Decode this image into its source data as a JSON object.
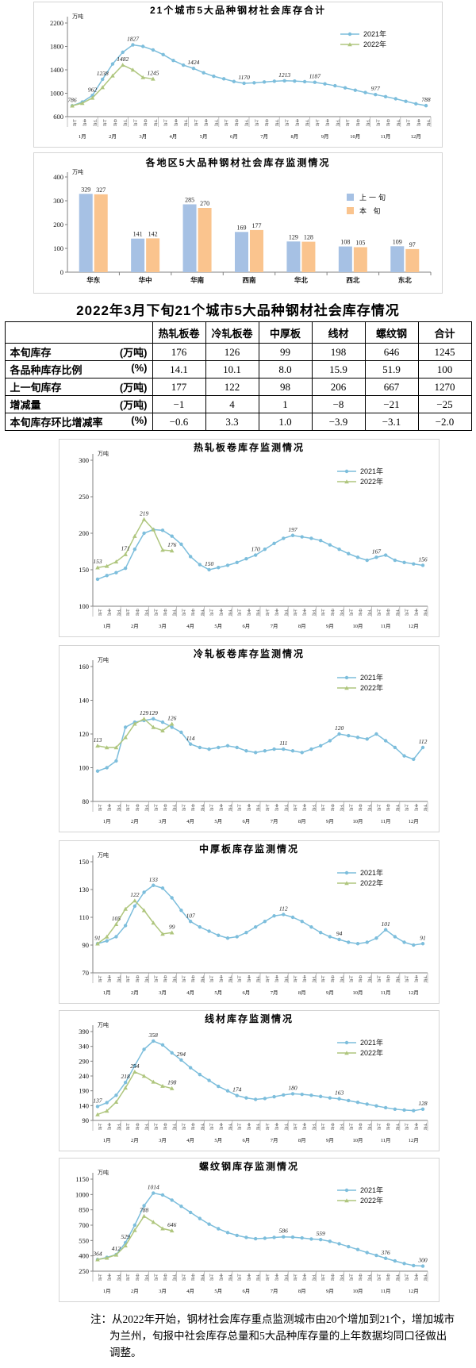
{
  "page": {
    "title": "2022年3月下旬21个城市5大品种钢材社会库存情况"
  },
  "table": {
    "col_headers": [
      "",
      "热轧板卷",
      "冷轧板卷",
      "中厚板",
      "线材",
      "螺纹钢",
      "合计"
    ],
    "rows": [
      {
        "label": "本旬库存",
        "unit": "(万吨)",
        "values": [
          "176",
          "126",
          "99",
          "198",
          "646",
          "1245"
        ]
      },
      {
        "label": "各品种库存比例",
        "unit": "(%)",
        "values": [
          "14.1",
          "10.1",
          "8.0",
          "15.9",
          "51.9",
          "100"
        ]
      },
      {
        "label": "上一旬库存",
        "unit": "(万吨)",
        "values": [
          "177",
          "122",
          "98",
          "206",
          "667",
          "1270"
        ]
      },
      {
        "label": "增减量",
        "unit": "(万吨)",
        "values": [
          "−1",
          "4",
          "1",
          "−8",
          "−21",
          "−25"
        ]
      },
      {
        "label": "本旬库存环比增减率",
        "unit": "(%)",
        "values": [
          "−0.6",
          "3.3",
          "1.0",
          "−3.9",
          "−3.1",
          "−2.0"
        ]
      }
    ]
  },
  "note": "注：从2022年开始，钢材社会库存重点监测城市由20个增加到21个，增加城市为兰州，旬报中社会库存总量和5大品种库存量的上年数据均同口径做出调整。",
  "chart_data": [
    {
      "type": "line",
      "title": "21个城市5大品种钢材社会库存合计",
      "unit": "万吨",
      "ylim": [
        600,
        2200
      ],
      "ytick": 400,
      "grid": false,
      "legend_position": "top-right",
      "x_months": [
        "1月",
        "2月",
        "3月",
        "4月",
        "5月",
        "6月",
        "7月",
        "8月",
        "9月",
        "10月",
        "11月",
        "12月"
      ],
      "x_periods": [
        "上旬",
        "中旬",
        "下旬"
      ],
      "series": [
        {
          "name": "2021年",
          "color": "#7DBEDC",
          "marker": "circle",
          "values": [
            786,
            850,
            962,
            1238,
            1500,
            1700,
            1827,
            1800,
            1740,
            1660,
            1560,
            1480,
            1424,
            1350,
            1290,
            1246,
            1200,
            1170,
            1178,
            1192,
            1205,
            1213,
            1208,
            1198,
            1187,
            1160,
            1128,
            1092,
            1052,
            1012,
            977,
            942,
            905,
            862,
            820,
            788
          ],
          "labels": {
            "0": "786",
            "2": "962",
            "3": "1238",
            "6": "1827",
            "12": "1424",
            "17": "1170",
            "21": "1213",
            "24": "1187",
            "30": "977",
            "35": "788"
          }
        },
        {
          "name": "2022年",
          "color": "#AFC67E",
          "marker": "triangle",
          "values": [
            786,
            830,
            920,
            1100,
            1300,
            1482,
            1400,
            1270,
            1245
          ],
          "labels": {
            "5": "1482",
            "8": "1245"
          }
        }
      ]
    },
    {
      "type": "bar",
      "title": "各地区5大品种钢材社会库存监测情况",
      "unit": "万吨",
      "ylim": [
        0,
        400
      ],
      "ytick": 100,
      "grid": false,
      "legend_position": "right",
      "categories": [
        "华东",
        "华中",
        "华南",
        "西南",
        "华北",
        "西北",
        "东北"
      ],
      "series": [
        {
          "name": "上一旬",
          "color": "#A6C1E4",
          "values": [
            329,
            141,
            285,
            169,
            129,
            108,
            109
          ]
        },
        {
          "name": "本 旬",
          "color": "#FAC48E",
          "values": [
            327,
            142,
            270,
            177,
            128,
            105,
            97
          ]
        }
      ]
    },
    {
      "type": "line",
      "title": "热轧板卷库存监测情况",
      "unit": "万吨",
      "ylim": [
        100,
        300
      ],
      "ytick": 50,
      "grid": false,
      "legend_position": "top-right",
      "x_months": [
        "1月",
        "2月",
        "3月",
        "4月",
        "5月",
        "6月",
        "7月",
        "8月",
        "9月",
        "10月",
        "11月",
        "12月"
      ],
      "x_periods": [
        "上旬",
        "中旬",
        "下旬"
      ],
      "series": [
        {
          "name": "2021年",
          "color": "#7DBEDC",
          "marker": "circle",
          "values": [
            137,
            142,
            146,
            152,
            178,
            200,
            205,
            204,
            196,
            185,
            168,
            157,
            150,
            153,
            156,
            160,
            165,
            170,
            178,
            186,
            193,
            197,
            195,
            193,
            190,
            184,
            178,
            172,
            167,
            163,
            167,
            170,
            163,
            160,
            158,
            156
          ],
          "labels": {
            "12": "150",
            "17": "170",
            "21": "197",
            "30": "167",
            "35": "156"
          }
        },
        {
          "name": "2022年",
          "color": "#AFC67E",
          "marker": "triangle",
          "values": [
            153,
            155,
            161,
            171,
            196,
            219,
            205,
            177,
            176
          ],
          "labels": {
            "0": "153",
            "3": "171",
            "5": "219",
            "8": "176"
          }
        }
      ]
    },
    {
      "type": "line",
      "title": "冷轧板卷库存监测情况",
      "unit": "万吨",
      "ylim": [
        80,
        160
      ],
      "ytick": 20,
      "grid": false,
      "legend_position": "top-right",
      "x_months": [
        "1月",
        "2月",
        "3月",
        "4月",
        "5月",
        "6月",
        "7月",
        "8月",
        "9月",
        "10月",
        "11月",
        "12月"
      ],
      "x_periods": [
        "上旬",
        "中旬",
        "下旬"
      ],
      "series": [
        {
          "name": "2021年",
          "color": "#7DBEDC",
          "marker": "circle",
          "values": [
            98,
            100,
            104,
            124,
            127,
            128,
            129,
            127,
            124,
            121,
            114,
            112,
            111,
            112,
            113,
            112,
            110,
            109,
            110,
            111,
            111,
            110,
            109,
            111,
            113,
            116,
            120,
            119,
            118,
            117,
            120,
            116,
            112,
            107,
            105,
            112
          ],
          "labels": {
            "6": "129",
            "10": "114",
            "20": "111",
            "26": "120",
            "35": "112"
          }
        },
        {
          "name": "2022年",
          "color": "#AFC67E",
          "marker": "triangle",
          "values": [
            113,
            112,
            112,
            118,
            126,
            129,
            124,
            122,
            126
          ],
          "labels": {
            "0": "113",
            "5": "129",
            "8": "126"
          }
        }
      ]
    },
    {
      "type": "line",
      "title": "中厚板库存监测情况",
      "unit": "万吨",
      "ylim": [
        70,
        150
      ],
      "ytick": 20,
      "grid": false,
      "legend_position": "top-right",
      "x_months": [
        "1月",
        "2月",
        "3月",
        "4月",
        "5月",
        "6月",
        "7月",
        "8月",
        "9月",
        "10月",
        "11月",
        "12月"
      ],
      "x_periods": [
        "上旬",
        "中旬",
        "下旬"
      ],
      "series": [
        {
          "name": "2021年",
          "color": "#7DBEDC",
          "marker": "circle",
          "values": [
            91,
            93,
            96,
            104,
            118,
            128,
            133,
            131,
            124,
            115,
            107,
            103,
            100,
            97,
            95,
            96,
            99,
            103,
            107,
            111,
            112,
            110,
            107,
            103,
            99,
            96,
            94,
            92,
            91,
            92,
            95,
            101,
            96,
            92,
            90,
            91
          ],
          "labels": {
            "0": "91",
            "6": "133",
            "10": "107",
            "20": "112",
            "26": "94",
            "31": "101",
            "35": "91"
          }
        },
        {
          "name": "2022年",
          "color": "#AFC67E",
          "marker": "triangle",
          "values": [
            91,
            96,
            105,
            116,
            122,
            115,
            106,
            98,
            99
          ],
          "labels": {
            "2": "105",
            "4": "122",
            "8": "99"
          }
        }
      ]
    },
    {
      "type": "line",
      "title": "线材库存监测情况",
      "unit": "万吨",
      "ylim": [
        90,
        390
      ],
      "ytick": 50,
      "grid": false,
      "legend_position": "top-right",
      "x_months": [
        "1月",
        "2月",
        "3月",
        "4月",
        "5月",
        "6月",
        "7月",
        "8月",
        "9月",
        "10月",
        "11月",
        "12月"
      ],
      "x_periods": [
        "上旬",
        "中旬",
        "下旬"
      ],
      "series": [
        {
          "name": "2021年",
          "color": "#7DBEDC",
          "marker": "circle",
          "values": [
            137,
            150,
            175,
            218,
            275,
            330,
            358,
            345,
            318,
            294,
            268,
            245,
            225,
            205,
            190,
            174,
            166,
            161,
            164,
            170,
            176,
            180,
            178,
            175,
            171,
            166,
            163,
            157,
            151,
            145,
            139,
            133,
            128,
            125,
            123,
            128
          ],
          "labels": {
            "0": "137",
            "3": "218",
            "6": "358",
            "9": "294",
            "15": "174",
            "21": "180",
            "26": "163",
            "35": "128"
          }
        },
        {
          "name": "2022年",
          "color": "#AFC67E",
          "marker": "triangle",
          "values": [
            110,
            122,
            152,
            200,
            254,
            240,
            220,
            206,
            198
          ],
          "labels": {
            "4": "254",
            "8": "198"
          }
        }
      ]
    },
    {
      "type": "line",
      "title": "螺纹钢库存监测情况",
      "unit": "万吨",
      "ylim": [
        250,
        1150
      ],
      "ytick": 150,
      "grid": false,
      "legend_position": "top-right",
      "x_months": [
        "1月",
        "2月",
        "3月",
        "4月",
        "5月",
        "6月",
        "7月",
        "8月",
        "9月",
        "10月",
        "11月",
        "12月"
      ],
      "x_periods": [
        "上旬",
        "中旬",
        "下旬"
      ],
      "series": [
        {
          "name": "2021年",
          "color": "#7DBEDC",
          "marker": "circle",
          "values": [
            364,
            385,
            412,
            529,
            700,
            890,
            1014,
            995,
            945,
            885,
            825,
            765,
            710,
            665,
            628,
            600,
            580,
            568,
            572,
            580,
            586,
            583,
            575,
            565,
            559,
            542,
            518,
            490,
            462,
            432,
            405,
            376,
            350,
            325,
            305,
            300
          ],
          "labels": {
            "0": "364",
            "2": "412",
            "3": "529",
            "6": "1014",
            "20": "586",
            "24": "559",
            "31": "376",
            "35": "300"
          }
        },
        {
          "name": "2022年",
          "color": "#AFC67E",
          "marker": "triangle",
          "values": [
            364,
            380,
            410,
            500,
            650,
            788,
            730,
            667,
            646
          ],
          "labels": {
            "5": "788",
            "8": "646"
          }
        }
      ]
    }
  ]
}
